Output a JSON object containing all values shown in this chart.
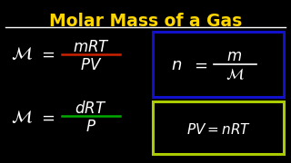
{
  "background_color": "#000000",
  "title": "Molar Mass of a Gas",
  "title_color": "#FFD700",
  "title_underline_color": "#FFFFFF",
  "box1_color": "#1111CC",
  "box2_color": "#AACC00",
  "text_color": "#FFFFFF",
  "frac1_numerator_underline": "#CC2200",
  "frac2_numerator_underline": "#00AA00",
  "figsize": [
    3.2,
    1.8
  ],
  "dpi": 100
}
